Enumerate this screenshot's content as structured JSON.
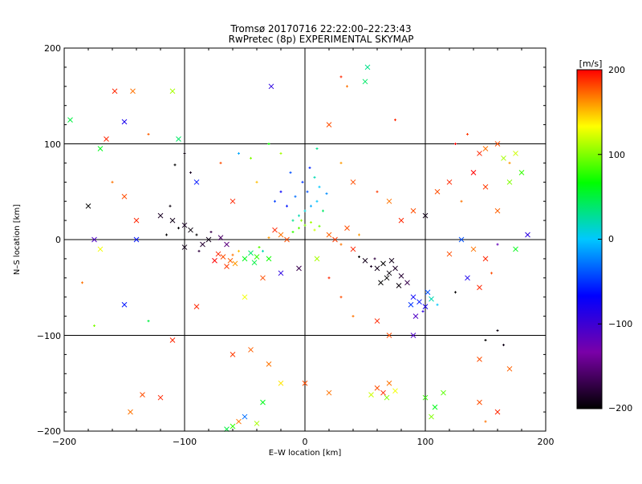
{
  "chart_data": {
    "type": "scatter",
    "title": "Tromsø 20170716 22:22:00–22:23:43",
    "subtitle": "RwPretec (8p) EXPERIMENTAL SKYMAP",
    "xlabel": "E–W location [km]",
    "ylabel": "N–S location [km]",
    "xlim": [
      -200,
      200
    ],
    "ylim": [
      -200,
      200
    ],
    "xticks": [
      "−200",
      "−100",
      "0",
      "100",
      "200"
    ],
    "yticks": [
      "−200",
      "−100",
      "0",
      "100",
      "200"
    ],
    "grid": true,
    "colorbar": {
      "label": "[m/s]",
      "range": [
        -200,
        200
      ],
      "ticks": [
        "200",
        "100",
        "0",
        "−100",
        "−200"
      ],
      "tick_values": [
        200,
        100,
        0,
        -100,
        -200
      ],
      "stops": [
        "#000000",
        "#7a00a8",
        "#0000ff",
        "#00c8ff",
        "#00ff00",
        "#ffff00",
        "#ff0000"
      ]
    },
    "points": [
      {
        "x": -68,
        "y": -18,
        "v": 180,
        "m": "x"
      },
      {
        "x": -62,
        "y": -22,
        "v": 175,
        "m": "x"
      },
      {
        "x": -72,
        "y": -15,
        "v": 190,
        "m": "x"
      },
      {
        "x": -58,
        "y": -25,
        "v": 160,
        "m": "x"
      },
      {
        "x": -65,
        "y": -28,
        "v": 185,
        "m": "x"
      },
      {
        "x": -55,
        "y": -12,
        "v": 150,
        "m": "+"
      },
      {
        "x": -75,
        "y": -22,
        "v": 200,
        "m": "x"
      },
      {
        "x": -60,
        "y": -16,
        "v": 170,
        "m": "+"
      },
      {
        "x": -50,
        "y": -20,
        "v": 60,
        "m": "x"
      },
      {
        "x": -45,
        "y": -14,
        "v": 40,
        "m": "x"
      },
      {
        "x": -40,
        "y": -18,
        "v": 80,
        "m": "x"
      },
      {
        "x": -35,
        "y": -12,
        "v": 20,
        "m": "+"
      },
      {
        "x": -42,
        "y": -24,
        "v": 50,
        "m": "x"
      },
      {
        "x": -30,
        "y": -20,
        "v": 70,
        "m": "x"
      },
      {
        "x": -38,
        "y": -8,
        "v": 90,
        "m": "+"
      },
      {
        "x": -85,
        "y": -5,
        "v": -180,
        "m": "x"
      },
      {
        "x": -80,
        "y": 0,
        "v": -190,
        "m": "x"
      },
      {
        "x": -90,
        "y": 5,
        "v": -200,
        "m": "+"
      },
      {
        "x": -95,
        "y": 10,
        "v": -195,
        "m": "x"
      },
      {
        "x": -100,
        "y": 15,
        "v": -185,
        "m": "x"
      },
      {
        "x": -105,
        "y": 12,
        "v": -200,
        "m": "+"
      },
      {
        "x": -110,
        "y": 20,
        "v": -190,
        "m": "x"
      },
      {
        "x": -78,
        "y": 8,
        "v": -170,
        "m": "+"
      },
      {
        "x": -70,
        "y": 2,
        "v": -160,
        "m": "x"
      },
      {
        "x": -65,
        "y": -5,
        "v": -150,
        "m": "x"
      },
      {
        "x": -88,
        "y": -12,
        "v": -175,
        "m": "+"
      },
      {
        "x": -100,
        "y": -8,
        "v": -190,
        "m": "x"
      },
      {
        "x": -115,
        "y": 5,
        "v": -200,
        "m": "+"
      },
      {
        "x": -120,
        "y": 25,
        "v": -185,
        "m": "x"
      },
      {
        "x": -112,
        "y": 35,
        "v": -195,
        "m": "+"
      },
      {
        "x": -10,
        "y": 20,
        "v": 30,
        "m": "+"
      },
      {
        "x": -5,
        "y": 25,
        "v": 20,
        "m": "+"
      },
      {
        "x": 0,
        "y": 30,
        "v": 10,
        "m": "+"
      },
      {
        "x": 5,
        "y": 35,
        "v": -10,
        "m": "+"
      },
      {
        "x": 10,
        "y": 40,
        "v": 0,
        "m": "+"
      },
      {
        "x": -8,
        "y": 45,
        "v": -30,
        "m": "+"
      },
      {
        "x": 2,
        "y": 50,
        "v": -40,
        "m": "+"
      },
      {
        "x": 12,
        "y": 55,
        "v": 0,
        "m": "+"
      },
      {
        "x": -15,
        "y": 35,
        "v": -60,
        "m": "+"
      },
      {
        "x": -2,
        "y": 60,
        "v": -50,
        "m": "+"
      },
      {
        "x": 8,
        "y": 65,
        "v": 20,
        "m": "+"
      },
      {
        "x": 15,
        "y": 30,
        "v": 40,
        "m": "+"
      },
      {
        "x": -20,
        "y": 50,
        "v": -70,
        "m": "+"
      },
      {
        "x": -25,
        "y": 40,
        "v": -45,
        "m": "+"
      },
      {
        "x": 18,
        "y": 48,
        "v": -20,
        "m": "+"
      },
      {
        "x": 4,
        "y": 75,
        "v": -55,
        "m": "+"
      },
      {
        "x": -12,
        "y": 70,
        "v": -40,
        "m": "+"
      },
      {
        "x": 0,
        "y": 15,
        "v": 100,
        "m": "+"
      },
      {
        "x": 5,
        "y": 18,
        "v": 110,
        "m": "+"
      },
      {
        "x": -5,
        "y": 12,
        "v": 90,
        "m": "+"
      },
      {
        "x": 8,
        "y": 10,
        "v": 120,
        "m": "+"
      },
      {
        "x": -3,
        "y": 20,
        "v": 105,
        "m": "+"
      },
      {
        "x": 12,
        "y": 14,
        "v": 95,
        "m": "+"
      },
      {
        "x": -10,
        "y": 8,
        "v": 80,
        "m": "+"
      },
      {
        "x": -20,
        "y": 5,
        "v": 170,
        "m": "x"
      },
      {
        "x": -15,
        "y": 0,
        "v": 180,
        "m": "x"
      },
      {
        "x": -25,
        "y": 10,
        "v": 190,
        "m": "x"
      },
      {
        "x": -30,
        "y": 2,
        "v": 160,
        "m": "+"
      },
      {
        "x": 20,
        "y": 5,
        "v": 175,
        "m": "x"
      },
      {
        "x": 25,
        "y": 0,
        "v": 185,
        "m": "x"
      },
      {
        "x": 30,
        "y": -5,
        "v": 170,
        "m": "+"
      },
      {
        "x": 40,
        "y": -10,
        "v": 190,
        "m": "x"
      },
      {
        "x": 45,
        "y": 5,
        "v": 160,
        "m": "+"
      },
      {
        "x": 35,
        "y": 12,
        "v": 180,
        "m": "x"
      },
      {
        "x": 60,
        "y": -30,
        "v": -190,
        "m": "x"
      },
      {
        "x": 65,
        "y": -25,
        "v": -200,
        "m": "x"
      },
      {
        "x": 70,
        "y": -35,
        "v": -195,
        "m": "x"
      },
      {
        "x": 75,
        "y": -30,
        "v": -185,
        "m": "x"
      },
      {
        "x": 68,
        "y": -40,
        "v": -200,
        "m": "x"
      },
      {
        "x": 72,
        "y": -22,
        "v": -190,
        "m": "x"
      },
      {
        "x": 80,
        "y": -38,
        "v": -180,
        "m": "x"
      },
      {
        "x": 58,
        "y": -20,
        "v": -175,
        "m": "+"
      },
      {
        "x": 63,
        "y": -45,
        "v": -200,
        "m": "x"
      },
      {
        "x": 78,
        "y": -48,
        "v": -195,
        "m": "x"
      },
      {
        "x": 85,
        "y": -45,
        "v": -170,
        "m": "x"
      },
      {
        "x": 55,
        "y": -28,
        "v": -185,
        "m": "+"
      },
      {
        "x": 50,
        "y": -22,
        "v": -190,
        "m": "x"
      },
      {
        "x": 45,
        "y": -18,
        "v": -200,
        "m": "+"
      },
      {
        "x": 90,
        "y": -60,
        "v": -70,
        "m": "x"
      },
      {
        "x": 95,
        "y": -65,
        "v": -60,
        "m": "x"
      },
      {
        "x": 100,
        "y": -70,
        "v": -80,
        "m": "x"
      },
      {
        "x": 88,
        "y": -68,
        "v": -50,
        "m": "x"
      },
      {
        "x": 98,
        "y": -75,
        "v": -90,
        "m": "+"
      },
      {
        "x": 102,
        "y": -55,
        "v": -40,
        "m": "x"
      },
      {
        "x": 92,
        "y": -80,
        "v": -110,
        "m": "x"
      },
      {
        "x": 105,
        "y": -62,
        "v": 20,
        "m": "x"
      },
      {
        "x": 110,
        "y": -68,
        "v": 0,
        "m": "+"
      },
      {
        "x": 110,
        "y": 50,
        "v": 180,
        "m": "x"
      },
      {
        "x": 120,
        "y": 60,
        "v": 190,
        "m": "x"
      },
      {
        "x": 130,
        "y": 40,
        "v": 170,
        "m": "+"
      },
      {
        "x": 140,
        "y": 70,
        "v": 200,
        "m": "x"
      },
      {
        "x": 150,
        "y": 55,
        "v": 185,
        "m": "x"
      },
      {
        "x": 160,
        "y": 30,
        "v": 175,
        "m": "x"
      },
      {
        "x": 170,
        "y": 80,
        "v": 160,
        "m": "+"
      },
      {
        "x": 145,
        "y": 90,
        "v": 190,
        "m": "x"
      },
      {
        "x": 125,
        "y": 100,
        "v": 200,
        "m": "+"
      },
      {
        "x": 135,
        "y": 110,
        "v": 185,
        "m": "+"
      },
      {
        "x": 150,
        "y": 95,
        "v": 170,
        "m": "x"
      },
      {
        "x": 160,
        "y": 100,
        "v": 180,
        "m": "x"
      },
      {
        "x": 175,
        "y": 90,
        "v": 120,
        "m": "x"
      },
      {
        "x": 165,
        "y": 85,
        "v": 110,
        "m": "x"
      },
      {
        "x": 170,
        "y": 60,
        "v": 100,
        "m": "x"
      },
      {
        "x": 180,
        "y": 70,
        "v": 80,
        "m": "x"
      },
      {
        "x": 185,
        "y": 5,
        "v": -90,
        "m": "x"
      },
      {
        "x": 175,
        "y": -10,
        "v": 60,
        "m": "x"
      },
      {
        "x": 160,
        "y": -5,
        "v": -120,
        "m": "+"
      },
      {
        "x": 150,
        "y": -20,
        "v": 190,
        "m": "x"
      },
      {
        "x": 140,
        "y": -10,
        "v": 170,
        "m": "x"
      },
      {
        "x": 130,
        "y": 0,
        "v": -40,
        "m": "x"
      },
      {
        "x": 120,
        "y": -15,
        "v": 180,
        "m": "x"
      },
      {
        "x": 135,
        "y": -40,
        "v": -80,
        "m": "x"
      },
      {
        "x": 145,
        "y": -50,
        "v": 190,
        "m": "x"
      },
      {
        "x": 155,
        "y": -35,
        "v": 180,
        "m": "+"
      },
      {
        "x": 125,
        "y": -55,
        "v": -200,
        "m": "+"
      },
      {
        "x": 160,
        "y": -95,
        "v": -195,
        "m": "+"
      },
      {
        "x": 165,
        "y": -110,
        "v": -190,
        "m": "+"
      },
      {
        "x": 150,
        "y": -105,
        "v": -200,
        "m": "+"
      },
      {
        "x": 145,
        "y": -125,
        "v": 180,
        "m": "x"
      },
      {
        "x": 170,
        "y": -135,
        "v": 175,
        "m": "x"
      },
      {
        "x": 60,
        "y": -155,
        "v": 180,
        "m": "x"
      },
      {
        "x": 65,
        "y": -160,
        "v": 190,
        "m": "x"
      },
      {
        "x": 70,
        "y": -150,
        "v": 170,
        "m": "x"
      },
      {
        "x": 75,
        "y": -158,
        "v": 130,
        "m": "x"
      },
      {
        "x": 68,
        "y": -165,
        "v": 100,
        "m": "x"
      },
      {
        "x": 55,
        "y": -162,
        "v": 120,
        "m": "x"
      },
      {
        "x": 100,
        "y": -165,
        "v": 80,
        "m": "x"
      },
      {
        "x": 108,
        "y": -175,
        "v": 60,
        "m": "x"
      },
      {
        "x": 115,
        "y": -160,
        "v": 90,
        "m": "x"
      },
      {
        "x": 105,
        "y": -185,
        "v": 100,
        "m": "x"
      },
      {
        "x": 145,
        "y": -170,
        "v": 180,
        "m": "x"
      },
      {
        "x": 160,
        "y": -180,
        "v": 190,
        "m": "x"
      },
      {
        "x": 150,
        "y": -190,
        "v": 170,
        "m": "+"
      },
      {
        "x": -60,
        "y": -195,
        "v": 80,
        "m": "x"
      },
      {
        "x": -55,
        "y": -190,
        "v": 170,
        "m": "x"
      },
      {
        "x": -50,
        "y": -185,
        "v": -30,
        "m": "x"
      },
      {
        "x": -65,
        "y": -198,
        "v": 50,
        "m": "x"
      },
      {
        "x": -40,
        "y": -192,
        "v": 110,
        "m": "x"
      },
      {
        "x": -120,
        "y": -165,
        "v": 190,
        "m": "x"
      },
      {
        "x": -135,
        "y": -162,
        "v": 180,
        "m": "x"
      },
      {
        "x": -145,
        "y": -180,
        "v": 170,
        "m": "x"
      },
      {
        "x": -110,
        "y": -105,
        "v": 190,
        "m": "x"
      },
      {
        "x": -60,
        "y": -120,
        "v": 185,
        "m": "x"
      },
      {
        "x": -45,
        "y": -115,
        "v": 175,
        "m": "x"
      },
      {
        "x": -30,
        "y": -130,
        "v": 170,
        "m": "x"
      },
      {
        "x": -20,
        "y": -150,
        "v": 140,
        "m": "x"
      },
      {
        "x": 0,
        "y": -150,
        "v": 180,
        "m": "x"
      },
      {
        "x": 20,
        "y": -160,
        "v": 170,
        "m": "x"
      },
      {
        "x": -35,
        "y": -170,
        "v": 60,
        "m": "x"
      },
      {
        "x": -158,
        "y": 155,
        "v": 190,
        "m": "x"
      },
      {
        "x": -143,
        "y": 155,
        "v": 170,
        "m": "x"
      },
      {
        "x": -110,
        "y": 155,
        "v": 110,
        "m": "x"
      },
      {
        "x": -150,
        "y": 123,
        "v": -80,
        "m": "x"
      },
      {
        "x": -195,
        "y": 125,
        "v": 50,
        "m": "x"
      },
      {
        "x": -170,
        "y": 95,
        "v": 60,
        "m": "x"
      },
      {
        "x": -130,
        "y": 110,
        "v": 175,
        "m": "+"
      },
      {
        "x": -105,
        "y": 105,
        "v": 40,
        "m": "x"
      },
      {
        "x": -165,
        "y": 105,
        "v": 190,
        "m": "x"
      },
      {
        "x": 30,
        "y": 170,
        "v": 190,
        "m": "+"
      },
      {
        "x": 35,
        "y": 160,
        "v": 170,
        "m": "+"
      },
      {
        "x": 50,
        "y": 165,
        "v": 40,
        "m": "x"
      },
      {
        "x": 52,
        "y": 180,
        "v": 30,
        "m": "x"
      },
      {
        "x": -28,
        "y": 160,
        "v": -90,
        "m": "x"
      },
      {
        "x": 20,
        "y": 120,
        "v": 180,
        "m": "x"
      },
      {
        "x": 75,
        "y": 125,
        "v": 190,
        "m": "+"
      },
      {
        "x": -180,
        "y": 35,
        "v": -200,
        "m": "x"
      },
      {
        "x": -175,
        "y": 0,
        "v": -110,
        "m": "x"
      },
      {
        "x": -170,
        "y": -10,
        "v": 130,
        "m": "x"
      },
      {
        "x": -140,
        "y": 20,
        "v": 190,
        "m": "x"
      },
      {
        "x": -150,
        "y": 45,
        "v": 180,
        "m": "x"
      },
      {
        "x": -160,
        "y": 60,
        "v": 170,
        "m": "+"
      },
      {
        "x": -140,
        "y": 0,
        "v": -60,
        "m": "x"
      },
      {
        "x": -150,
        "y": -68,
        "v": -60,
        "m": "x"
      },
      {
        "x": -130,
        "y": -85,
        "v": 50,
        "m": "+"
      },
      {
        "x": -185,
        "y": -45,
        "v": 170,
        "m": "+"
      },
      {
        "x": -175,
        "y": -90,
        "v": 100,
        "m": "+"
      },
      {
        "x": -90,
        "y": -70,
        "v": 190,
        "m": "x"
      },
      {
        "x": -50,
        "y": -60,
        "v": 130,
        "m": "x"
      },
      {
        "x": -35,
        "y": -40,
        "v": 180,
        "m": "x"
      },
      {
        "x": -20,
        "y": -35,
        "v": -90,
        "m": "x"
      },
      {
        "x": -5,
        "y": -30,
        "v": -170,
        "m": "x"
      },
      {
        "x": 10,
        "y": -20,
        "v": 110,
        "m": "x"
      },
      {
        "x": 20,
        "y": -40,
        "v": 190,
        "m": "+"
      },
      {
        "x": 30,
        "y": -60,
        "v": 180,
        "m": "+"
      },
      {
        "x": 40,
        "y": -80,
        "v": 170,
        "m": "+"
      },
      {
        "x": 60,
        "y": -85,
        "v": 190,
        "m": "x"
      },
      {
        "x": 70,
        "y": -100,
        "v": 180,
        "m": "x"
      },
      {
        "x": 90,
        "y": -100,
        "v": -110,
        "m": "x"
      },
      {
        "x": 80,
        "y": 20,
        "v": 190,
        "m": "x"
      },
      {
        "x": 90,
        "y": 30,
        "v": 180,
        "m": "x"
      },
      {
        "x": 100,
        "y": 25,
        "v": -190,
        "m": "x"
      },
      {
        "x": 70,
        "y": 40,
        "v": 170,
        "m": "x"
      },
      {
        "x": 60,
        "y": 50,
        "v": 185,
        "m": "+"
      },
      {
        "x": 40,
        "y": 60,
        "v": 180,
        "m": "x"
      },
      {
        "x": 30,
        "y": 80,
        "v": 160,
        "m": "+"
      },
      {
        "x": -40,
        "y": 60,
        "v": 150,
        "m": "+"
      },
      {
        "x": -60,
        "y": 40,
        "v": 190,
        "m": "x"
      },
      {
        "x": -70,
        "y": 80,
        "v": 180,
        "m": "+"
      },
      {
        "x": -90,
        "y": 60,
        "v": -60,
        "m": "x"
      },
      {
        "x": -45,
        "y": 85,
        "v": 100,
        "m": "+"
      },
      {
        "x": -20,
        "y": 90,
        "v": 110,
        "m": "+"
      },
      {
        "x": 10,
        "y": 95,
        "v": 30,
        "m": "+"
      },
      {
        "x": -30,
        "y": 100,
        "v": 70,
        "m": "+"
      },
      {
        "x": -55,
        "y": 90,
        "v": -10,
        "m": "+"
      },
      {
        "x": -100,
        "y": 90,
        "v": -195,
        "m": "+"
      },
      {
        "x": -108,
        "y": 78,
        "v": -200,
        "m": "+"
      },
      {
        "x": -95,
        "y": 70,
        "v": -185,
        "m": "+"
      }
    ]
  }
}
